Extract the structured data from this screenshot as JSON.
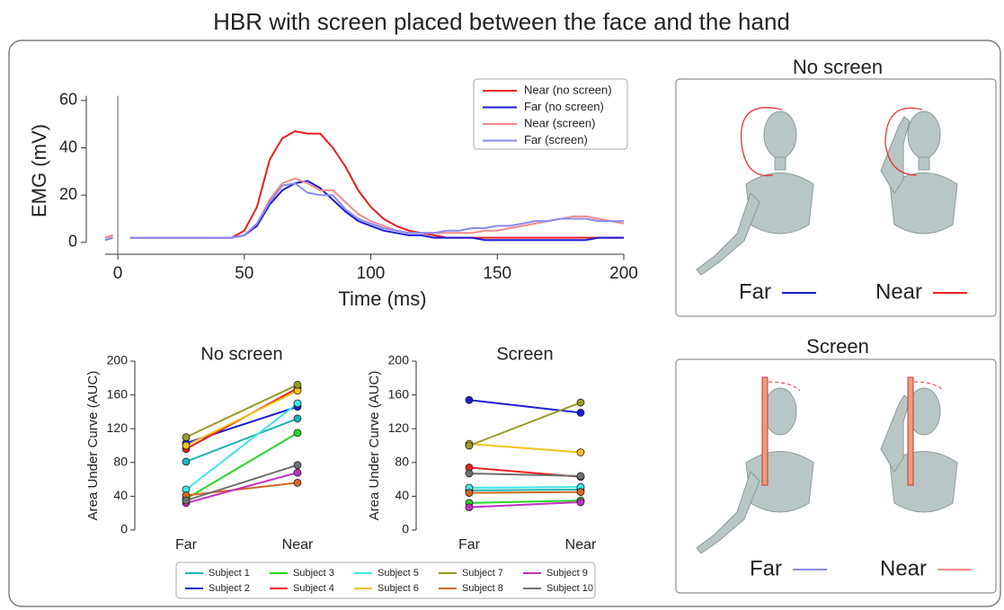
{
  "title": "HBR with screen placed between the face and the hand",
  "chart_data": [
    {
      "type": "line",
      "ylabel": "EMG (mV)",
      "xlabel": "Time (ms)",
      "x": [
        -5,
        -2,
        0,
        5,
        10,
        15,
        20,
        25,
        30,
        35,
        40,
        45,
        50,
        55,
        60,
        65,
        70,
        75,
        80,
        85,
        90,
        95,
        100,
        105,
        110,
        115,
        120,
        125,
        130,
        135,
        140,
        145,
        150,
        155,
        160,
        165,
        170,
        175,
        180,
        185,
        190,
        195,
        200
      ],
      "xlim": [
        -5,
        200
      ],
      "xticks": [
        0,
        50,
        100,
        150,
        200
      ],
      "ylim": [
        -5,
        62
      ],
      "yticks": [
        0,
        20,
        40,
        60
      ],
      "vline": 0,
      "legend": "upper right",
      "series": [
        {
          "name": "Near (no screen)",
          "color": "#ee1c1c",
          "values": [
            2,
            3,
            null,
            2,
            2,
            2,
            2,
            2,
            2,
            2,
            2,
            2,
            5,
            15,
            35,
            44,
            47,
            46,
            46,
            40,
            32,
            22,
            15,
            10,
            7,
            5,
            4,
            3,
            2,
            2,
            2,
            2,
            2,
            2,
            2,
            2,
            2,
            2,
            2,
            2,
            2,
            2,
            2
          ]
        },
        {
          "name": "Far (no screen)",
          "color": "#1c1cd6",
          "values": [
            1,
            2,
            null,
            2,
            2,
            2,
            2,
            2,
            2,
            2,
            2,
            2,
            3,
            7,
            16,
            22,
            25,
            26,
            23,
            18,
            13,
            9,
            7,
            5,
            4,
            3,
            3,
            2,
            2,
            2,
            2,
            1,
            1,
            1,
            1,
            1,
            1,
            1,
            1,
            1,
            2,
            2,
            2
          ]
        },
        {
          "name": "Near (screen)",
          "color": "#f48a8a",
          "values": [
            2,
            3,
            null,
            2,
            2,
            2,
            2,
            2,
            2,
            2,
            2,
            2,
            3,
            8,
            18,
            25,
            27,
            25,
            22,
            22,
            17,
            12,
            9,
            7,
            5,
            4,
            4,
            4,
            4,
            4,
            4,
            5,
            5,
            6,
            7,
            8,
            9,
            10,
            11,
            11,
            10,
            9,
            8
          ]
        },
        {
          "name": "Far (screen)",
          "color": "#8a8af0",
          "values": [
            1,
            2,
            null,
            2,
            2,
            2,
            2,
            2,
            2,
            2,
            2,
            2,
            3,
            8,
            17,
            24,
            25,
            21,
            20,
            20,
            14,
            10,
            8,
            6,
            5,
            4,
            4,
            4,
            5,
            5,
            6,
            6,
            7,
            7,
            8,
            9,
            9,
            10,
            10,
            10,
            9,
            9,
            9
          ]
        }
      ]
    },
    {
      "type": "slope",
      "title": "No screen",
      "ylabel": "Area Under Curve (AUC)",
      "categories": [
        "Far",
        "Near"
      ],
      "ylim": [
        0,
        200
      ],
      "yticks": [
        0,
        40,
        80,
        120,
        160,
        200
      ],
      "legend": "lower center",
      "series": [
        {
          "name": "Subject 1",
          "color": "#1fb3b3",
          "values": [
            81,
            132
          ]
        },
        {
          "name": "Subject 2",
          "color": "#1c1cd6",
          "values": [
            103,
            146
          ]
        },
        {
          "name": "Subject 3",
          "color": "#2ad62a",
          "values": [
            37,
            115
          ]
        },
        {
          "name": "Subject 4",
          "color": "#ee1c1c",
          "values": [
            96,
            168
          ]
        },
        {
          "name": "Subject 5",
          "color": "#3fe6e6",
          "values": [
            48,
            150
          ]
        },
        {
          "name": "Subject 6",
          "color": "#f2c31a",
          "values": [
            100,
            165
          ]
        },
        {
          "name": "Subject 7",
          "color": "#9a9a2a",
          "values": [
            110,
            172
          ]
        },
        {
          "name": "Subject 8",
          "color": "#d2691e",
          "values": [
            41,
            56
          ]
        },
        {
          "name": "Subject 9",
          "color": "#c030c0",
          "values": [
            32,
            68
          ]
        },
        {
          "name": "Subject 10",
          "color": "#707070",
          "values": [
            35,
            77
          ]
        }
      ]
    },
    {
      "type": "slope",
      "title": "Screen",
      "ylabel": "Area Under Curve (AUC)",
      "categories": [
        "Far",
        "Near"
      ],
      "ylim": [
        0,
        200
      ],
      "yticks": [
        0,
        40,
        80,
        120,
        160,
        200
      ],
      "series": [
        {
          "color": "#1fb3b3",
          "values": [
            47,
            48
          ]
        },
        {
          "color": "#1c1cd6",
          "values": [
            154,
            139
          ]
        },
        {
          "color": "#2ad62a",
          "values": [
            32,
            35
          ]
        },
        {
          "color": "#ee1c1c",
          "values": [
            74,
            63
          ]
        },
        {
          "color": "#3fe6e6",
          "values": [
            50,
            51
          ]
        },
        {
          "color": "#f2c31a",
          "values": [
            102,
            92
          ]
        },
        {
          "color": "#9a9a2a",
          "values": [
            100,
            151
          ]
        },
        {
          "color": "#d2691e",
          "values": [
            44,
            45
          ]
        },
        {
          "color": "#c030c0",
          "values": [
            27,
            33
          ]
        },
        {
          "color": "#707070",
          "values": [
            67,
            64
          ]
        }
      ]
    }
  ],
  "panels": [
    {
      "title": "No screen",
      "labels": [
        {
          "text": "Far",
          "color": "#1c1cd6"
        },
        {
          "text": "Near",
          "color": "#ee1c1c"
        }
      ]
    },
    {
      "title": "Screen",
      "labels": [
        {
          "text": "Far",
          "color": "#8a8af0"
        },
        {
          "text": "Near",
          "color": "#f48a8a"
        }
      ]
    }
  ]
}
